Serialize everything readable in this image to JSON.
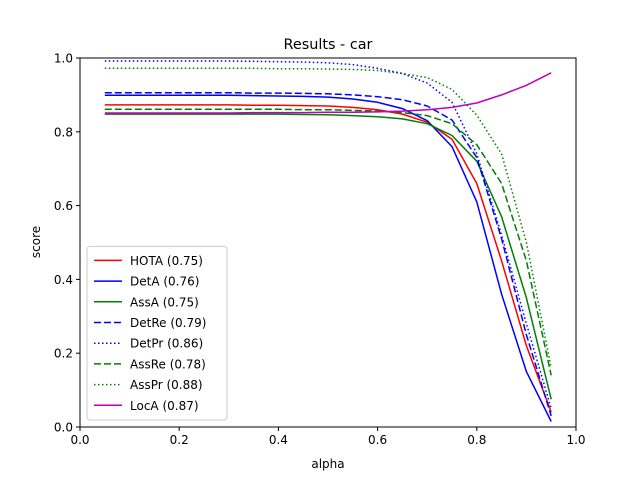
{
  "chart_data": {
    "type": "line",
    "title": "Results - car",
    "xlabel": "alpha",
    "ylabel": "score",
    "xlim": [
      0.0,
      1.0
    ],
    "ylim": [
      0.0,
      1.0
    ],
    "xticks": [
      "0.0",
      "0.2",
      "0.4",
      "0.6",
      "0.8",
      "1.0"
    ],
    "yticks": [
      "0.0",
      "0.2",
      "0.4",
      "0.6",
      "0.8",
      "1.0"
    ],
    "grid": false,
    "legend_position": "lower-left",
    "x": [
      0.05,
      0.1,
      0.15,
      0.2,
      0.25,
      0.3,
      0.35,
      0.4,
      0.45,
      0.5,
      0.55,
      0.6,
      0.65,
      0.7,
      0.75,
      0.8,
      0.85,
      0.9,
      0.95
    ],
    "series": [
      {
        "name": "HOTA (0.75)",
        "color": "#ff0000",
        "style": "solid",
        "values": [
          0.873,
          0.873,
          0.873,
          0.873,
          0.873,
          0.873,
          0.872,
          0.872,
          0.871,
          0.87,
          0.866,
          0.86,
          0.848,
          0.826,
          0.78,
          0.66,
          0.45,
          0.22,
          0.04
        ]
      },
      {
        "name": "DetA (0.76)",
        "color": "#0000ff",
        "style": "solid",
        "values": [
          0.899,
          0.899,
          0.899,
          0.899,
          0.899,
          0.899,
          0.898,
          0.897,
          0.896,
          0.894,
          0.889,
          0.88,
          0.863,
          0.83,
          0.76,
          0.61,
          0.36,
          0.15,
          0.015
        ]
      },
      {
        "name": "AssA (0.75)",
        "color": "#008000",
        "style": "solid",
        "values": [
          0.848,
          0.848,
          0.848,
          0.848,
          0.848,
          0.848,
          0.848,
          0.848,
          0.847,
          0.846,
          0.844,
          0.841,
          0.835,
          0.822,
          0.79,
          0.72,
          0.57,
          0.35,
          0.075
        ]
      },
      {
        "name": "DetRe (0.79)",
        "color": "#0000ff",
        "style": "dashed",
        "values": [
          0.906,
          0.906,
          0.906,
          0.906,
          0.906,
          0.906,
          0.905,
          0.905,
          0.904,
          0.903,
          0.9,
          0.895,
          0.887,
          0.87,
          0.832,
          0.73,
          0.51,
          0.25,
          0.03
        ]
      },
      {
        "name": "DetPr (0.86)",
        "color": "#0000ff",
        "style": "dotted",
        "values": [
          0.992,
          0.992,
          0.992,
          0.992,
          0.992,
          0.992,
          0.991,
          0.99,
          0.989,
          0.987,
          0.982,
          0.972,
          0.958,
          0.932,
          0.88,
          0.74,
          0.52,
          0.28,
          0.05
        ]
      },
      {
        "name": "AssRe (0.78)",
        "color": "#008000",
        "style": "dashed",
        "values": [
          0.861,
          0.861,
          0.861,
          0.861,
          0.861,
          0.861,
          0.861,
          0.861,
          0.86,
          0.86,
          0.858,
          0.856,
          0.852,
          0.844,
          0.822,
          0.765,
          0.66,
          0.45,
          0.14
        ]
      },
      {
        "name": "AssPr (0.88)",
        "color": "#008000",
        "style": "dotted",
        "values": [
          0.972,
          0.972,
          0.972,
          0.972,
          0.972,
          0.972,
          0.972,
          0.971,
          0.971,
          0.97,
          0.969,
          0.966,
          0.958,
          0.947,
          0.915,
          0.845,
          0.74,
          0.5,
          0.16
        ]
      },
      {
        "name": "LocA (0.87)",
        "color": "#bf00bf",
        "style": "solid",
        "values": [
          0.851,
          0.851,
          0.851,
          0.851,
          0.851,
          0.851,
          0.852,
          0.852,
          0.852,
          0.853,
          0.853,
          0.854,
          0.856,
          0.86,
          0.866,
          0.878,
          0.9,
          0.926,
          0.96
        ]
      }
    ]
  }
}
